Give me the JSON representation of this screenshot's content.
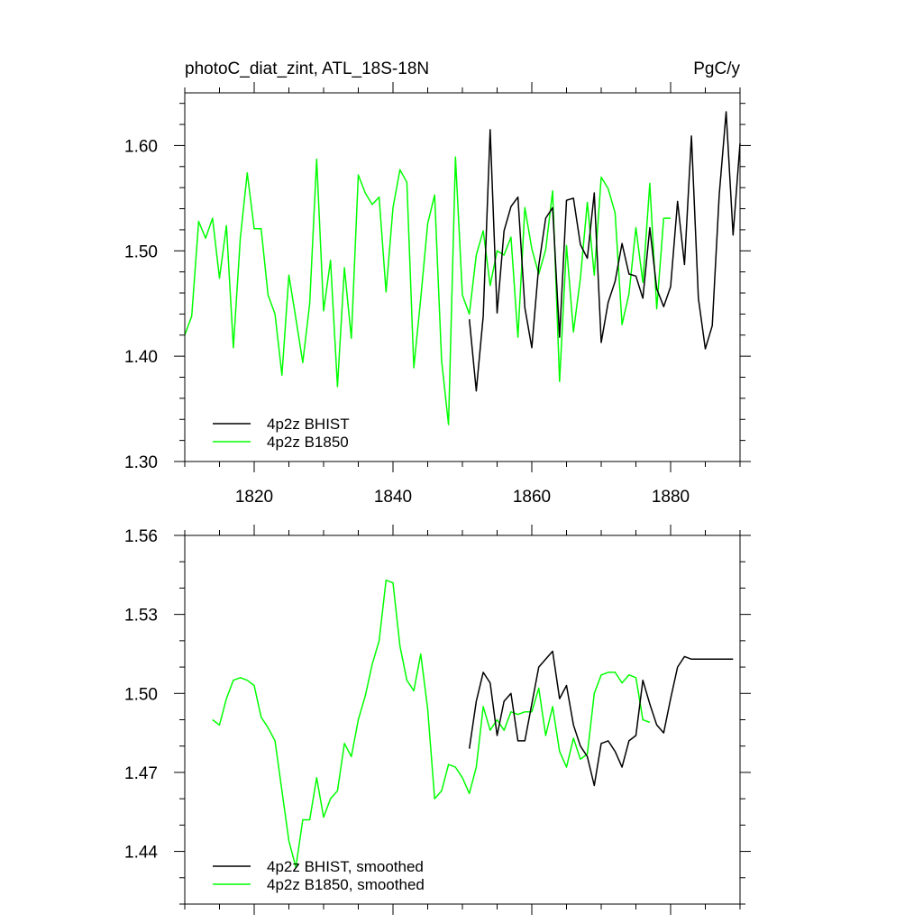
{
  "chart_data": [
    {
      "type": "line",
      "title_left": "photoC_diat_zint, ATL_18S-18N",
      "title_right": "PgC/y",
      "xlim": [
        1810,
        1890
      ],
      "ylim": [
        1.3,
        1.65
      ],
      "xticks": [
        1820,
        1840,
        1860,
        1880
      ],
      "xtick_labels": [
        "1820",
        "1840",
        "1860",
        "1880"
      ],
      "yticks": [
        1.3,
        1.4,
        1.5,
        1.6
      ],
      "ytick_labels": [
        "1.30",
        "1.40",
        "1.50",
        "1.60"
      ],
      "grid": false,
      "legend_position": "bottom-left",
      "series": [
        {
          "name": "4p2z BHIST",
          "color": "#000000",
          "x": [
            1851,
            1852,
            1853,
            1854,
            1855,
            1856,
            1857,
            1858,
            1859,
            1860,
            1861,
            1862,
            1863,
            1864,
            1865,
            1866,
            1867,
            1868,
            1869,
            1870,
            1871,
            1872,
            1873,
            1874,
            1875,
            1876,
            1877,
            1878,
            1879,
            1880,
            1881,
            1882,
            1883,
            1884,
            1885,
            1886,
            1887,
            1888,
            1889,
            1890
          ],
          "y": [
            1.435,
            1.367,
            1.438,
            1.615,
            1.441,
            1.519,
            1.542,
            1.551,
            1.446,
            1.408,
            1.486,
            1.531,
            1.541,
            1.418,
            1.548,
            1.55,
            1.506,
            1.493,
            1.555,
            1.413,
            1.451,
            1.471,
            1.507,
            1.478,
            1.476,
            1.455,
            1.522,
            1.464,
            1.447,
            1.466,
            1.547,
            1.487,
            1.609,
            1.455,
            1.407,
            1.429,
            1.553,
            1.632,
            1.515,
            1.602
          ]
        },
        {
          "name": "4p2z B1850",
          "color": "#00ff00",
          "x": [
            1810,
            1811,
            1812,
            1813,
            1814,
            1815,
            1816,
            1817,
            1818,
            1819,
            1820,
            1821,
            1822,
            1823,
            1824,
            1825,
            1826,
            1827,
            1828,
            1829,
            1830,
            1831,
            1832,
            1833,
            1834,
            1835,
            1836,
            1837,
            1838,
            1839,
            1840,
            1841,
            1842,
            1843,
            1844,
            1845,
            1846,
            1847,
            1848,
            1849,
            1850,
            1851,
            1852,
            1853,
            1854,
            1855,
            1856,
            1857,
            1858,
            1859,
            1860,
            1861,
            1862,
            1863,
            1864,
            1865,
            1866,
            1867,
            1868,
            1869,
            1870,
            1871,
            1872,
            1873,
            1874,
            1875,
            1876,
            1877,
            1878,
            1879,
            1880
          ],
          "y": [
            1.42,
            1.438,
            1.528,
            1.512,
            1.531,
            1.474,
            1.524,
            1.408,
            1.512,
            1.574,
            1.521,
            1.521,
            1.458,
            1.44,
            1.382,
            1.477,
            1.436,
            1.394,
            1.45,
            1.587,
            1.443,
            1.491,
            1.371,
            1.484,
            1.417,
            1.572,
            1.555,
            1.544,
            1.551,
            1.461,
            1.541,
            1.577,
            1.565,
            1.389,
            1.455,
            1.526,
            1.553,
            1.396,
            1.335,
            1.589,
            1.458,
            1.44,
            1.496,
            1.519,
            1.467,
            1.5,
            1.496,
            1.513,
            1.418,
            1.541,
            1.502,
            1.478,
            1.501,
            1.557,
            1.376,
            1.505,
            1.423,
            1.474,
            1.546,
            1.477,
            1.57,
            1.559,
            1.536,
            1.43,
            1.459,
            1.522,
            1.47,
            1.564,
            1.445,
            1.531,
            1.531
          ]
        }
      ]
    },
    {
      "type": "line",
      "xlim": [
        1810,
        1890
      ],
      "ylim": [
        1.42,
        1.56
      ],
      "xticks": [
        1820,
        1840,
        1860,
        1880
      ],
      "yticks": [
        1.44,
        1.47,
        1.5,
        1.53,
        1.56
      ],
      "ytick_labels": [
        "1.44",
        "1.47",
        "1.50",
        "1.53",
        "1.56"
      ],
      "grid": false,
      "legend_position": "bottom-left",
      "series": [
        {
          "name": "4p2z BHIST, smoothed",
          "color": "#000000",
          "x": [
            1851,
            1852,
            1853,
            1854,
            1855,
            1856,
            1857,
            1858,
            1859,
            1860,
            1861,
            1862,
            1863,
            1864,
            1865,
            1866,
            1867,
            1868,
            1869,
            1870,
            1871,
            1872,
            1873,
            1874,
            1875,
            1876,
            1877,
            1878,
            1879,
            1880,
            1881,
            1882,
            1883,
            1884,
            1885,
            1886,
            1887,
            1888,
            1889
          ],
          "y": [
            1.479,
            1.497,
            1.508,
            1.504,
            1.484,
            1.497,
            1.5,
            1.482,
            1.482,
            1.496,
            1.51,
            1.513,
            1.516,
            1.498,
            1.503,
            1.488,
            1.48,
            1.476,
            1.465,
            1.481,
            1.482,
            1.478,
            1.472,
            1.482,
            1.484,
            1.505,
            1.496,
            1.488,
            1.485,
            1.498,
            1.51,
            1.514,
            1.513,
            1.513,
            1.513,
            1.513,
            1.513,
            1.513,
            1.513
          ]
        },
        {
          "name": "4p2z B1850, smoothed",
          "color": "#00ff00",
          "x": [
            1814,
            1815,
            1816,
            1817,
            1818,
            1819,
            1820,
            1821,
            1822,
            1823,
            1824,
            1825,
            1826,
            1827,
            1828,
            1829,
            1830,
            1831,
            1832,
            1833,
            1834,
            1835,
            1836,
            1837,
            1838,
            1839,
            1840,
            1841,
            1842,
            1843,
            1844,
            1845,
            1846,
            1847,
            1848,
            1849,
            1850,
            1851,
            1852,
            1853,
            1854,
            1855,
            1856,
            1857,
            1858,
            1859,
            1860,
            1861,
            1862,
            1863,
            1864,
            1865,
            1866,
            1867,
            1868,
            1869,
            1870,
            1871,
            1872,
            1873,
            1874,
            1875,
            1876,
            1877
          ],
          "y": [
            1.49,
            1.488,
            1.498,
            1.505,
            1.506,
            1.505,
            1.503,
            1.491,
            1.487,
            1.482,
            1.463,
            1.444,
            1.434,
            1.452,
            1.452,
            1.468,
            1.453,
            1.46,
            1.463,
            1.481,
            1.476,
            1.49,
            1.499,
            1.511,
            1.52,
            1.543,
            1.542,
            1.518,
            1.505,
            1.501,
            1.515,
            1.494,
            1.46,
            1.463,
            1.473,
            1.472,
            1.468,
            1.462,
            1.472,
            1.495,
            1.486,
            1.49,
            1.486,
            1.493,
            1.492,
            1.493,
            1.493,
            1.502,
            1.484,
            1.495,
            1.478,
            1.472,
            1.483,
            1.475,
            1.477,
            1.5,
            1.507,
            1.508,
            1.508,
            1.504,
            1.507,
            1.506,
            1.49,
            1.489
          ]
        }
      ]
    }
  ]
}
